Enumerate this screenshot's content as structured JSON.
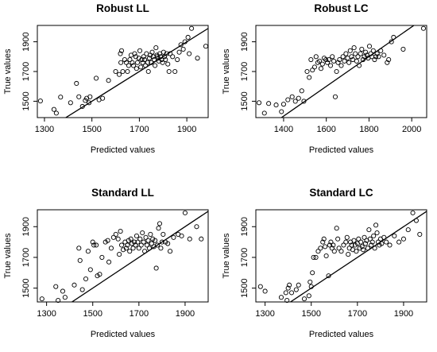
{
  "chart_data": [
    {
      "type": "scatter",
      "title": "Robust LL",
      "xlabel": "Predicted values",
      "ylabel": "True values",
      "xlim": [
        1270,
        1990
      ],
      "ylim": [
        1390,
        2010
      ],
      "xticks": [
        1300,
        1500,
        1700,
        1900
      ],
      "yticks": [
        1500,
        1700,
        1900
      ],
      "reference_line": {
        "slope": 1,
        "intercept": 0
      },
      "points": [
        [
          1283,
          1502
        ],
        [
          1340,
          1445
        ],
        [
          1350,
          1420
        ],
        [
          1368,
          1528
        ],
        [
          1410,
          1490
        ],
        [
          1435,
          1620
        ],
        [
          1445,
          1530
        ],
        [
          1460,
          1465
        ],
        [
          1472,
          1505
        ],
        [
          1478,
          1520
        ],
        [
          1488,
          1490
        ],
        [
          1492,
          1530
        ],
        [
          1518,
          1655
        ],
        [
          1530,
          1510
        ],
        [
          1545,
          1520
        ],
        [
          1570,
          1640
        ],
        [
          1600,
          1700
        ],
        [
          1615,
          1680
        ],
        [
          1620,
          1820
        ],
        [
          1622,
          1760
        ],
        [
          1625,
          1840
        ],
        [
          1630,
          1700
        ],
        [
          1638,
          1780
        ],
        [
          1645,
          1760
        ],
        [
          1650,
          1700
        ],
        [
          1655,
          1740
        ],
        [
          1660,
          1780
        ],
        [
          1665,
          1810
        ],
        [
          1670,
          1760
        ],
        [
          1675,
          1740
        ],
        [
          1680,
          1820
        ],
        [
          1685,
          1800
        ],
        [
          1688,
          1720
        ],
        [
          1692,
          1760
        ],
        [
          1698,
          1790
        ],
        [
          1702,
          1840
        ],
        [
          1706,
          1730
        ],
        [
          1710,
          1780
        ],
        [
          1714,
          1760
        ],
        [
          1718,
          1800
        ],
        [
          1722,
          1780
        ],
        [
          1726,
          1740
        ],
        [
          1730,
          1820
        ],
        [
          1735,
          1760
        ],
        [
          1738,
          1700
        ],
        [
          1742,
          1790
        ],
        [
          1746,
          1810
        ],
        [
          1750,
          1760
        ],
        [
          1754,
          1830
        ],
        [
          1758,
          1800
        ],
        [
          1762,
          1780
        ],
        [
          1766,
          1740
        ],
        [
          1770,
          1860
        ],
        [
          1774,
          1810
        ],
        [
          1778,
          1790
        ],
        [
          1782,
          1770
        ],
        [
          1786,
          1820
        ],
        [
          1790,
          1800
        ],
        [
          1794,
          1780
        ],
        [
          1798,
          1760
        ],
        [
          1802,
          1830
        ],
        [
          1806,
          1800
        ],
        [
          1810,
          1780
        ],
        [
          1815,
          1820
        ],
        [
          1820,
          1750
        ],
        [
          1825,
          1700
        ],
        [
          1830,
          1820
        ],
        [
          1840,
          1800
        ],
        [
          1850,
          1700
        ],
        [
          1860,
          1780
        ],
        [
          1868,
          1830
        ],
        [
          1875,
          1880
        ],
        [
          1885,
          1850
        ],
        [
          1892,
          1900
        ],
        [
          1905,
          1930
        ],
        [
          1910,
          1820
        ],
        [
          1920,
          1990
        ],
        [
          1945,
          1790
        ],
        [
          1980,
          1870
        ],
        [
          1775,
          1800
        ]
      ]
    },
    {
      "type": "scatter",
      "title": "Robust LC",
      "xlabel": "Predicted values",
      "ylabel": "True values",
      "xlim": [
        1270,
        2070
      ],
      "ylim": [
        1390,
        2010
      ],
      "xticks": [
        1400,
        1600,
        1800,
        2000
      ],
      "yticks": [
        1500,
        1700,
        1900
      ],
      "reference_line": {
        "slope": 1,
        "intercept": 0
      },
      "points": [
        [
          1285,
          1490
        ],
        [
          1310,
          1420
        ],
        [
          1330,
          1485
        ],
        [
          1365,
          1475
        ],
        [
          1390,
          1430
        ],
        [
          1400,
          1480
        ],
        [
          1420,
          1510
        ],
        [
          1440,
          1530
        ],
        [
          1455,
          1500
        ],
        [
          1470,
          1520
        ],
        [
          1485,
          1570
        ],
        [
          1495,
          1500
        ],
        [
          1510,
          1700
        ],
        [
          1520,
          1660
        ],
        [
          1528,
          1780
        ],
        [
          1535,
          1710
        ],
        [
          1545,
          1730
        ],
        [
          1552,
          1800
        ],
        [
          1560,
          1760
        ],
        [
          1568,
          1770
        ],
        [
          1575,
          1720
        ],
        [
          1582,
          1750
        ],
        [
          1590,
          1790
        ],
        [
          1598,
          1780
        ],
        [
          1605,
          1760
        ],
        [
          1612,
          1780
        ],
        [
          1620,
          1740
        ],
        [
          1628,
          1800
        ],
        [
          1635,
          1770
        ],
        [
          1642,
          1530
        ],
        [
          1648,
          1700
        ],
        [
          1655,
          1760
        ],
        [
          1662,
          1780
        ],
        [
          1670,
          1740
        ],
        [
          1678,
          1800
        ],
        [
          1685,
          1770
        ],
        [
          1692,
          1820
        ],
        [
          1700,
          1790
        ],
        [
          1706,
          1760
        ],
        [
          1712,
          1840
        ],
        [
          1718,
          1800
        ],
        [
          1724,
          1780
        ],
        [
          1730,
          1860
        ],
        [
          1736,
          1820
        ],
        [
          1742,
          1770
        ],
        [
          1748,
          1800
        ],
        [
          1754,
          1740
        ],
        [
          1760,
          1820
        ],
        [
          1766,
          1850
        ],
        [
          1772,
          1780
        ],
        [
          1778,
          1800
        ],
        [
          1784,
          1830
        ],
        [
          1790,
          1810
        ],
        [
          1796,
          1790
        ],
        [
          1802,
          1870
        ],
        [
          1808,
          1820
        ],
        [
          1814,
          1800
        ],
        [
          1820,
          1840
        ],
        [
          1826,
          1780
        ],
        [
          1832,
          1800
        ],
        [
          1838,
          1820
        ],
        [
          1845,
          1800
        ],
        [
          1855,
          1840
        ],
        [
          1870,
          1810
        ],
        [
          1885,
          1760
        ],
        [
          1892,
          1780
        ],
        [
          1905,
          1900
        ],
        [
          1915,
          1930
        ],
        [
          1960,
          1850
        ],
        [
          2055,
          1990
        ]
      ]
    },
    {
      "type": "scatter",
      "title": "Standard LL",
      "xlabel": "Predicted values",
      "ylabel": "True values",
      "xlim": [
        1260,
        2000
      ],
      "ylim": [
        1410,
        2010
      ],
      "xticks": [
        1300,
        1500,
        1700,
        1900
      ],
      "yticks": [
        1500,
        1700,
        1900
      ],
      "reference_line": {
        "slope": 1,
        "intercept": 0
      },
      "points": [
        [
          1280,
          1430
        ],
        [
          1340,
          1510
        ],
        [
          1350,
          1420
        ],
        [
          1370,
          1480
        ],
        [
          1380,
          1440
        ],
        [
          1420,
          1520
        ],
        [
          1440,
          1760
        ],
        [
          1445,
          1680
        ],
        [
          1455,
          1490
        ],
        [
          1470,
          1560
        ],
        [
          1480,
          1740
        ],
        [
          1490,
          1620
        ],
        [
          1500,
          1800
        ],
        [
          1505,
          1780
        ],
        [
          1515,
          1780
        ],
        [
          1520,
          1580
        ],
        [
          1530,
          1590
        ],
        [
          1540,
          1700
        ],
        [
          1555,
          1800
        ],
        [
          1565,
          1810
        ],
        [
          1570,
          1670
        ],
        [
          1580,
          1760
        ],
        [
          1590,
          1830
        ],
        [
          1600,
          1850
        ],
        [
          1610,
          1820
        ],
        [
          1615,
          1720
        ],
        [
          1620,
          1870
        ],
        [
          1625,
          1780
        ],
        [
          1632,
          1750
        ],
        [
          1640,
          1800
        ],
        [
          1645,
          1760
        ],
        [
          1650,
          1780
        ],
        [
          1655,
          1810
        ],
        [
          1660,
          1740
        ],
        [
          1665,
          1820
        ],
        [
          1670,
          1790
        ],
        [
          1675,
          1760
        ],
        [
          1680,
          1800
        ],
        [
          1685,
          1780
        ],
        [
          1690,
          1840
        ],
        [
          1695,
          1800
        ],
        [
          1700,
          1760
        ],
        [
          1705,
          1820
        ],
        [
          1710,
          1780
        ],
        [
          1715,
          1860
        ],
        [
          1720,
          1800
        ],
        [
          1725,
          1740
        ],
        [
          1730,
          1830
        ],
        [
          1735,
          1780
        ],
        [
          1740,
          1810
        ],
        [
          1745,
          1760
        ],
        [
          1750,
          1850
        ],
        [
          1755,
          1790
        ],
        [
          1760,
          1820
        ],
        [
          1765,
          1770
        ],
        [
          1770,
          1810
        ],
        [
          1775,
          1630
        ],
        [
          1780,
          1780
        ],
        [
          1785,
          1890
        ],
        [
          1790,
          1920
        ],
        [
          1795,
          1760
        ],
        [
          1800,
          1800
        ],
        [
          1805,
          1850
        ],
        [
          1815,
          1800
        ],
        [
          1825,
          1790
        ],
        [
          1835,
          1740
        ],
        [
          1850,
          1830
        ],
        [
          1870,
          1850
        ],
        [
          1885,
          1840
        ],
        [
          1900,
          1990
        ],
        [
          1920,
          1820
        ],
        [
          1950,
          1900
        ],
        [
          1970,
          1820
        ]
      ]
    },
    {
      "type": "scatter",
      "title": "Standard LC",
      "xlabel": "Predicted values",
      "ylabel": "True values",
      "xlim": [
        1260,
        2000
      ],
      "ylim": [
        1410,
        2010
      ],
      "xticks": [
        1300,
        1500,
        1700,
        1900
      ],
      "yticks": [
        1500,
        1700,
        1900
      ],
      "reference_line": {
        "slope": 1,
        "intercept": 0
      },
      "points": [
        [
          1280,
          1510
        ],
        [
          1300,
          1480
        ],
        [
          1370,
          1440
        ],
        [
          1390,
          1470
        ],
        [
          1395,
          1420
        ],
        [
          1400,
          1500
        ],
        [
          1405,
          1520
        ],
        [
          1415,
          1470
        ],
        [
          1435,
          1490
        ],
        [
          1445,
          1520
        ],
        [
          1470,
          1430
        ],
        [
          1490,
          1450
        ],
        [
          1495,
          1540
        ],
        [
          1500,
          1510
        ],
        [
          1505,
          1600
        ],
        [
          1510,
          1700
        ],
        [
          1520,
          1700
        ],
        [
          1530,
          1740
        ],
        [
          1540,
          1760
        ],
        [
          1550,
          1800
        ],
        [
          1555,
          1820
        ],
        [
          1560,
          1770
        ],
        [
          1565,
          1710
        ],
        [
          1575,
          1580
        ],
        [
          1580,
          1780
        ],
        [
          1585,
          1800
        ],
        [
          1590,
          1760
        ],
        [
          1595,
          1780
        ],
        [
          1600,
          1740
        ],
        [
          1610,
          1890
        ],
        [
          1615,
          1820
        ],
        [
          1620,
          1760
        ],
        [
          1630,
          1740
        ],
        [
          1640,
          1780
        ],
        [
          1650,
          1800
        ],
        [
          1655,
          1830
        ],
        [
          1660,
          1720
        ],
        [
          1665,
          1760
        ],
        [
          1670,
          1800
        ],
        [
          1675,
          1780
        ],
        [
          1680,
          1750
        ],
        [
          1685,
          1810
        ],
        [
          1690,
          1780
        ],
        [
          1695,
          1740
        ],
        [
          1700,
          1790
        ],
        [
          1705,
          1820
        ],
        [
          1710,
          1760
        ],
        [
          1715,
          1800
        ],
        [
          1720,
          1770
        ],
        [
          1725,
          1750
        ],
        [
          1730,
          1830
        ],
        [
          1735,
          1790
        ],
        [
          1740,
          1810
        ],
        [
          1745,
          1760
        ],
        [
          1750,
          1880
        ],
        [
          1755,
          1820
        ],
        [
          1760,
          1780
        ],
        [
          1765,
          1800
        ],
        [
          1770,
          1840
        ],
        [
          1775,
          1760
        ],
        [
          1780,
          1910
        ],
        [
          1785,
          1860
        ],
        [
          1790,
          1800
        ],
        [
          1795,
          1780
        ],
        [
          1800,
          1820
        ],
        [
          1805,
          1790
        ],
        [
          1815,
          1830
        ],
        [
          1825,
          1800
        ],
        [
          1840,
          1780
        ],
        [
          1860,
          1840
        ],
        [
          1880,
          1800
        ],
        [
          1900,
          1820
        ],
        [
          1920,
          1880
        ],
        [
          1940,
          1990
        ],
        [
          1955,
          1940
        ],
        [
          1970,
          1850
        ]
      ]
    }
  ]
}
